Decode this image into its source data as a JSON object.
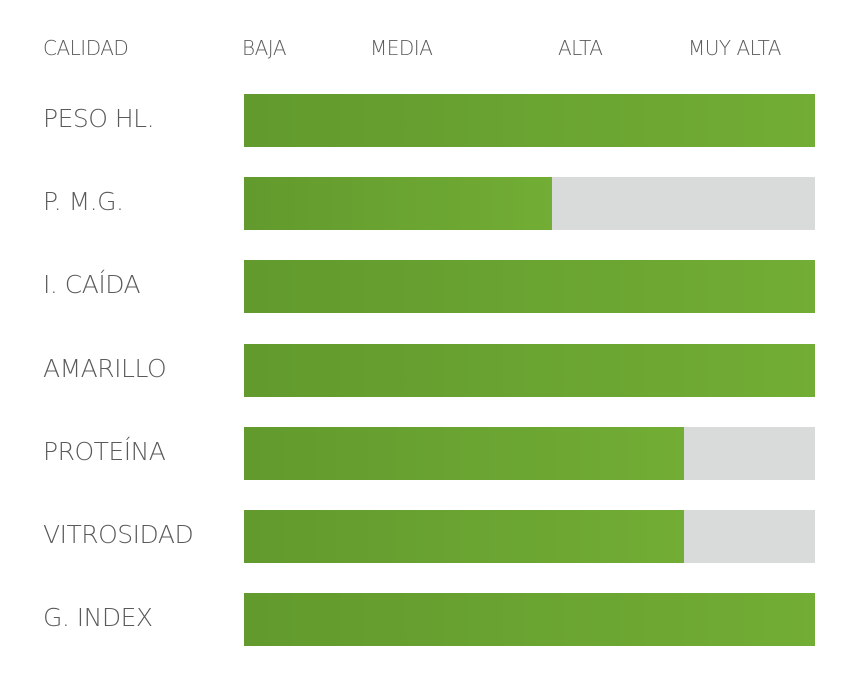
{
  "chart_data": {
    "type": "bar",
    "orientation": "horizontal",
    "header_label": "CALIDAD",
    "levels": [
      "BAJA",
      "MEDIA",
      "ALTA",
      "MUY ALTA"
    ],
    "scale_max": 1,
    "categories": [
      "PESO HL.",
      "P. M.G.",
      "I. CAÍDA",
      "AMARILLO",
      "PROTEÍNA",
      "VITROSIDAD",
      "G. INDEX"
    ],
    "values": [
      1.0,
      0.54,
      1.0,
      1.0,
      0.77,
      0.77,
      1.0
    ],
    "colors": {
      "bar_start": "#629a2d",
      "bar_end": "#72ad35",
      "track": "#d9dbda",
      "text": "#5a5a5a"
    }
  }
}
